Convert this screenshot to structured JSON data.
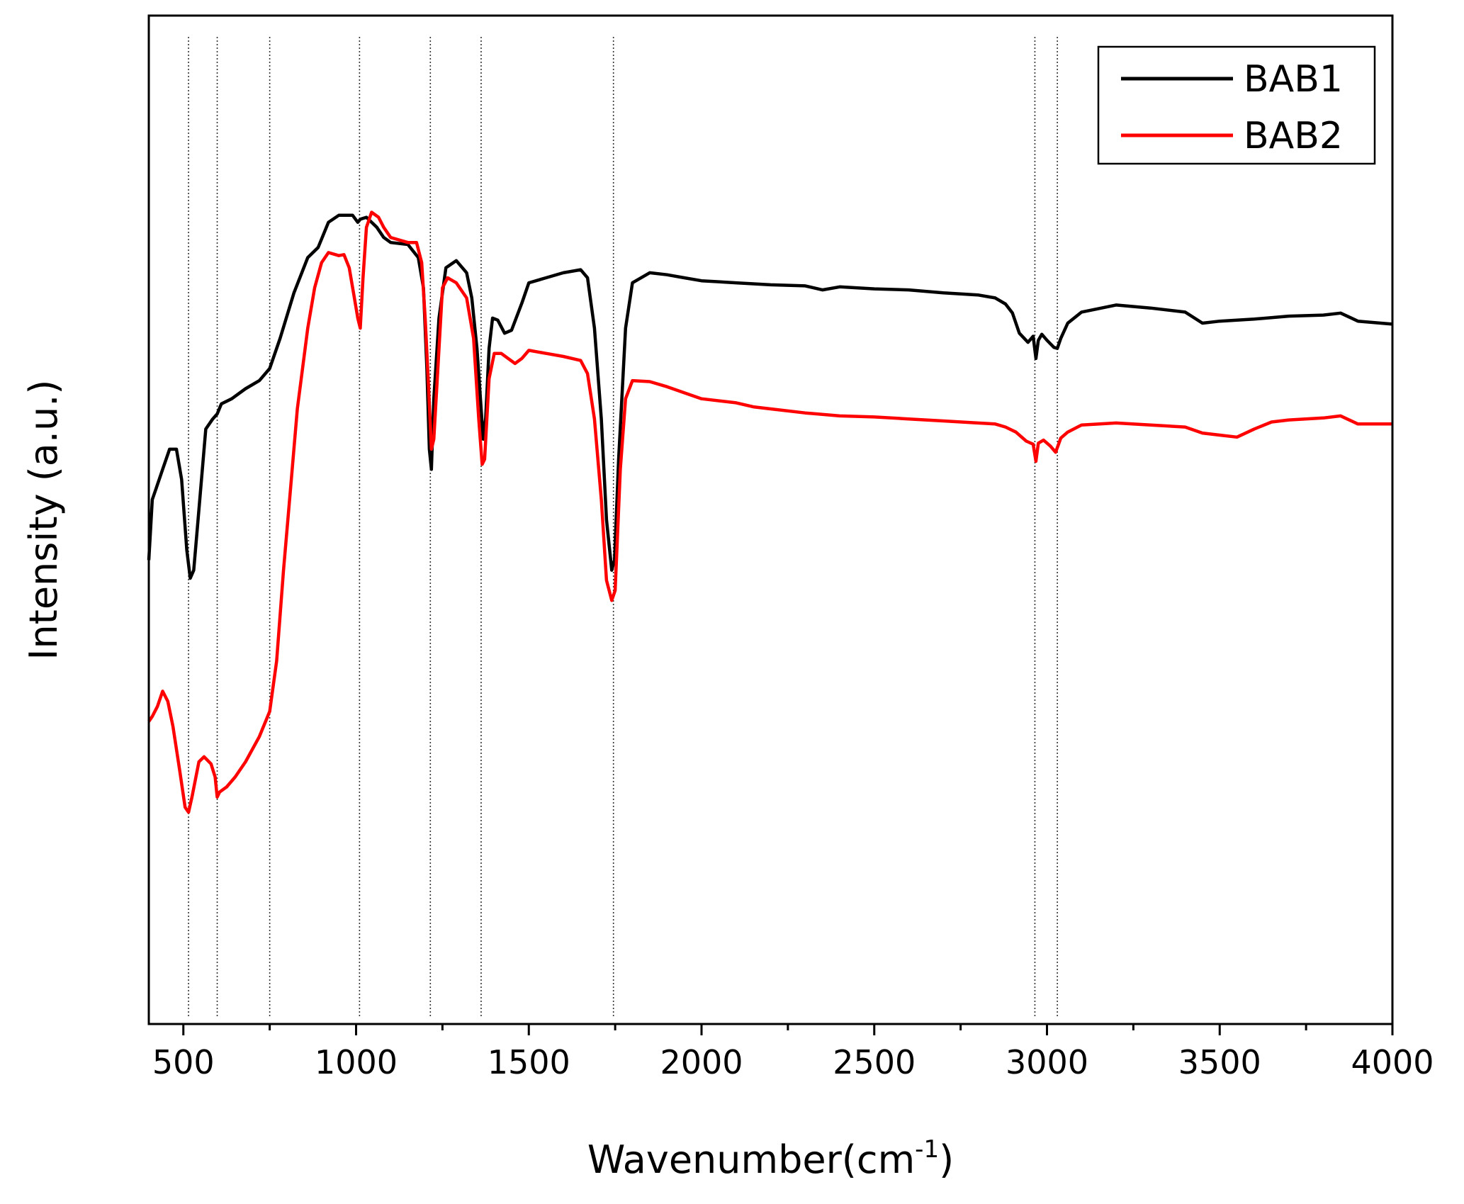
{
  "chart_data": {
    "type": "line",
    "title": "",
    "xlabel": "Wavenumber(cm",
    "xlabel_superscript": "-1",
    "xlabel_suffix": ")",
    "ylabel": "Intensity (a.u.)",
    "xlim": [
      400,
      4000
    ],
    "ylim": [
      0,
      100
    ],
    "y_ticks_labeled": false,
    "grid": false,
    "legend_position": "top-right",
    "x_ticks": [
      500,
      1000,
      1500,
      2000,
      2500,
      3000,
      3500,
      4000
    ],
    "x_tick_labels": [
      "500",
      "1000",
      "1500",
      "2000",
      "2500",
      "3000",
      "3500",
      "4000"
    ],
    "reference_lines_x": [
      515,
      598,
      750,
      1010,
      1215,
      1362,
      1745,
      2965,
      3030
    ],
    "series": [
      {
        "name": "BAB1",
        "color": "#000000",
        "points": [
          [
            400,
            46
          ],
          [
            410,
            52
          ],
          [
            420,
            53
          ],
          [
            440,
            55
          ],
          [
            460,
            57
          ],
          [
            480,
            57
          ],
          [
            495,
            54
          ],
          [
            510,
            47
          ],
          [
            520,
            44.2
          ],
          [
            530,
            45
          ],
          [
            545,
            51
          ],
          [
            565,
            59
          ],
          [
            585,
            60
          ],
          [
            598,
            60.5
          ],
          [
            610,
            61.5
          ],
          [
            640,
            62
          ],
          [
            680,
            63
          ],
          [
            720,
            63.8
          ],
          [
            750,
            65
          ],
          [
            780,
            68
          ],
          [
            820,
            72.5
          ],
          [
            860,
            76
          ],
          [
            890,
            77
          ],
          [
            920,
            79.5
          ],
          [
            950,
            80.2
          ],
          [
            990,
            80.2
          ],
          [
            1005,
            79.5
          ],
          [
            1012,
            79.8
          ],
          [
            1030,
            80
          ],
          [
            1060,
            79
          ],
          [
            1080,
            78
          ],
          [
            1100,
            77.5
          ],
          [
            1150,
            77.3
          ],
          [
            1180,
            76
          ],
          [
            1195,
            73
          ],
          [
            1205,
            65
          ],
          [
            1212,
            57
          ],
          [
            1218,
            55
          ],
          [
            1225,
            62
          ],
          [
            1240,
            70
          ],
          [
            1260,
            75
          ],
          [
            1290,
            75.7
          ],
          [
            1320,
            74.5
          ],
          [
            1335,
            72
          ],
          [
            1350,
            67
          ],
          [
            1360,
            62
          ],
          [
            1368,
            58
          ],
          [
            1375,
            60
          ],
          [
            1385,
            67
          ],
          [
            1395,
            70
          ],
          [
            1410,
            69.8
          ],
          [
            1430,
            68.5
          ],
          [
            1450,
            68.8
          ],
          [
            1480,
            71.5
          ],
          [
            1500,
            73.5
          ],
          [
            1550,
            74
          ],
          [
            1600,
            74.5
          ],
          [
            1650,
            74.8
          ],
          [
            1670,
            74
          ],
          [
            1690,
            69
          ],
          [
            1710,
            60
          ],
          [
            1725,
            50
          ],
          [
            1740,
            45
          ],
          [
            1748,
            46
          ],
          [
            1760,
            56
          ],
          [
            1780,
            69
          ],
          [
            1800,
            73.5
          ],
          [
            1850,
            74.5
          ],
          [
            1900,
            74.3
          ],
          [
            1950,
            74
          ],
          [
            2000,
            73.7
          ],
          [
            2100,
            73.5
          ],
          [
            2200,
            73.3
          ],
          [
            2300,
            73.2
          ],
          [
            2350,
            72.8
          ],
          [
            2400,
            73.1
          ],
          [
            2500,
            72.9
          ],
          [
            2600,
            72.8
          ],
          [
            2700,
            72.5
          ],
          [
            2800,
            72.3
          ],
          [
            2850,
            72
          ],
          [
            2880,
            71.4
          ],
          [
            2900,
            70.5
          ],
          [
            2920,
            68.5
          ],
          [
            2945,
            67.6
          ],
          [
            2960,
            68.2
          ],
          [
            2968,
            66
          ],
          [
            2975,
            67.8
          ],
          [
            2985,
            68.4
          ],
          [
            3000,
            67.8
          ],
          [
            3020,
            67.1
          ],
          [
            3030,
            67
          ],
          [
            3040,
            68
          ],
          [
            3060,
            69.5
          ],
          [
            3100,
            70.6
          ],
          [
            3200,
            71.3
          ],
          [
            3300,
            71
          ],
          [
            3400,
            70.6
          ],
          [
            3450,
            69.5
          ],
          [
            3500,
            69.7
          ],
          [
            3600,
            69.9
          ],
          [
            3700,
            70.2
          ],
          [
            3800,
            70.3
          ],
          [
            3850,
            70.5
          ],
          [
            3900,
            69.7
          ],
          [
            4000,
            69.4
          ]
        ]
      },
      {
        "name": "BAB2",
        "color": "#ff0000",
        "points": [
          [
            400,
            30
          ],
          [
            410,
            30.5
          ],
          [
            425,
            31.5
          ],
          [
            440,
            33
          ],
          [
            455,
            32
          ],
          [
            470,
            29.5
          ],
          [
            490,
            25
          ],
          [
            505,
            21.5
          ],
          [
            515,
            21
          ],
          [
            525,
            22.5
          ],
          [
            545,
            26
          ],
          [
            560,
            26.5
          ],
          [
            580,
            25.8
          ],
          [
            592,
            24.5
          ],
          [
            598,
            22.5
          ],
          [
            605,
            23
          ],
          [
            625,
            23.5
          ],
          [
            650,
            24.5
          ],
          [
            680,
            26
          ],
          [
            720,
            28.5
          ],
          [
            750,
            31
          ],
          [
            770,
            36
          ],
          [
            790,
            45
          ],
          [
            810,
            53
          ],
          [
            830,
            61
          ],
          [
            860,
            69
          ],
          [
            880,
            73
          ],
          [
            900,
            75.5
          ],
          [
            920,
            76.5
          ],
          [
            950,
            76.2
          ],
          [
            965,
            76.3
          ],
          [
            980,
            75
          ],
          [
            995,
            72
          ],
          [
            1005,
            70
          ],
          [
            1012,
            69
          ],
          [
            1020,
            74
          ],
          [
            1030,
            79
          ],
          [
            1045,
            80.5
          ],
          [
            1065,
            80
          ],
          [
            1080,
            79
          ],
          [
            1100,
            78
          ],
          [
            1150,
            77.5
          ],
          [
            1175,
            77.5
          ],
          [
            1190,
            75.5
          ],
          [
            1200,
            70
          ],
          [
            1210,
            63
          ],
          [
            1218,
            57
          ],
          [
            1225,
            58
          ],
          [
            1235,
            64
          ],
          [
            1250,
            73
          ],
          [
            1265,
            74
          ],
          [
            1290,
            73.5
          ],
          [
            1320,
            72
          ],
          [
            1340,
            68
          ],
          [
            1355,
            60
          ],
          [
            1365,
            55.5
          ],
          [
            1372,
            56
          ],
          [
            1385,
            64
          ],
          [
            1400,
            66.5
          ],
          [
            1420,
            66.5
          ],
          [
            1440,
            66
          ],
          [
            1460,
            65.5
          ],
          [
            1480,
            66
          ],
          [
            1500,
            66.8
          ],
          [
            1550,
            66.5
          ],
          [
            1600,
            66.2
          ],
          [
            1650,
            65.8
          ],
          [
            1670,
            64.5
          ],
          [
            1690,
            60
          ],
          [
            1710,
            52
          ],
          [
            1725,
            44
          ],
          [
            1740,
            42
          ],
          [
            1750,
            43
          ],
          [
            1765,
            55
          ],
          [
            1780,
            62
          ],
          [
            1800,
            63.8
          ],
          [
            1850,
            63.7
          ],
          [
            1900,
            63.2
          ],
          [
            1950,
            62.6
          ],
          [
            2000,
            62
          ],
          [
            2100,
            61.6
          ],
          [
            2150,
            61.2
          ],
          [
            2200,
            61
          ],
          [
            2300,
            60.6
          ],
          [
            2400,
            60.3
          ],
          [
            2500,
            60.2
          ],
          [
            2600,
            60
          ],
          [
            2700,
            59.8
          ],
          [
            2800,
            59.6
          ],
          [
            2850,
            59.5
          ],
          [
            2880,
            59.2
          ],
          [
            2910,
            58.7
          ],
          [
            2940,
            57.8
          ],
          [
            2960,
            57.5
          ],
          [
            2968,
            55.8
          ],
          [
            2975,
            57.6
          ],
          [
            2990,
            57.9
          ],
          [
            3010,
            57.3
          ],
          [
            3025,
            56.7
          ],
          [
            3040,
            58.1
          ],
          [
            3060,
            58.7
          ],
          [
            3100,
            59.4
          ],
          [
            3200,
            59.6
          ],
          [
            3300,
            59.4
          ],
          [
            3400,
            59.2
          ],
          [
            3450,
            58.6
          ],
          [
            3500,
            58.4
          ],
          [
            3550,
            58.2
          ],
          [
            3600,
            59
          ],
          [
            3650,
            59.7
          ],
          [
            3700,
            59.9
          ],
          [
            3800,
            60.1
          ],
          [
            3850,
            60.3
          ],
          [
            3900,
            59.5
          ],
          [
            4000,
            59.5
          ]
        ]
      }
    ]
  }
}
